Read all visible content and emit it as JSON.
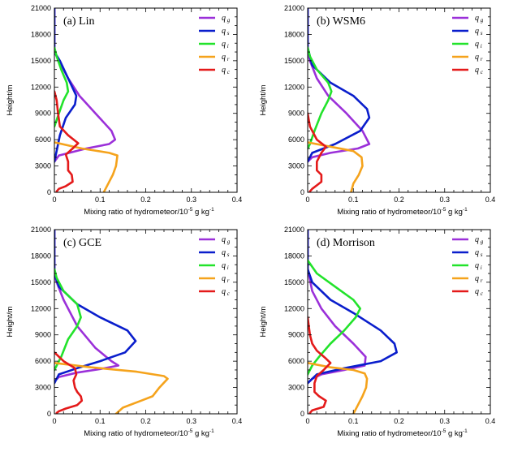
{
  "figure": {
    "xlabel": "Mixing ratio of hydrometeor/10",
    "xlabel_exp": "-5",
    "xlabel_unit": "g kg",
    "xlabel_unit_exp": "-1",
    "ylabel": "Height/m"
  },
  "legend": [
    {
      "sym": "q",
      "sub": "g",
      "color": "#9b30d9"
    },
    {
      "sym": "q",
      "sub": "s",
      "color": "#0a1ecc"
    },
    {
      "sym": "q",
      "sub": "i",
      "color": "#22e32b"
    },
    {
      "sym": "q",
      "sub": "r",
      "color": "#f5a31c"
    },
    {
      "sym": "q",
      "sub": "c",
      "color": "#e41a1a"
    }
  ],
  "colors": {
    "qg": "#9b30d9",
    "qs": "#0a1ecc",
    "qi": "#22e32b",
    "qr": "#f5a31c",
    "qc": "#e41a1a"
  },
  "chart_data": [
    {
      "type": "line",
      "title": "(a) Lin",
      "xlabel": "Mixing ratio of hydrometeor/10-5 g kg-1",
      "ylabel": "Height/m",
      "xlim": [
        0,
        0.4
      ],
      "ylim": [
        0,
        21000
      ],
      "xticks": [
        "0",
        "0.1",
        "0.2",
        "0.3",
        "0.4"
      ],
      "yticks": [
        "0",
        "3000",
        "6000",
        "9000",
        "12000",
        "15000",
        "18000",
        "21000"
      ],
      "series": [
        {
          "name": "qg",
          "points": [
            [
              0.0,
              21000
            ],
            [
              0.0,
              16000
            ],
            [
              0.01,
              15000
            ],
            [
              0.03,
              13000
            ],
            [
              0.055,
              11000
            ],
            [
              0.09,
              9000
            ],
            [
              0.125,
              7000
            ],
            [
              0.133,
              6000
            ],
            [
              0.12,
              5500
            ],
            [
              0.07,
              5000
            ],
            [
              0.01,
              4200
            ],
            [
              0.0,
              3500
            ]
          ]
        },
        {
          "name": "qs",
          "points": [
            [
              0.0,
              21000
            ],
            [
              0.0,
              16000
            ],
            [
              0.012,
              15000
            ],
            [
              0.03,
              13000
            ],
            [
              0.048,
              11000
            ],
            [
              0.045,
              10000
            ],
            [
              0.025,
              8500
            ],
            [
              0.012,
              6500
            ],
            [
              0.006,
              5000
            ],
            [
              0.0,
              3500
            ]
          ]
        },
        {
          "name": "qi",
          "points": [
            [
              0.0,
              16500
            ],
            [
              0.005,
              15500
            ],
            [
              0.015,
              14000
            ],
            [
              0.027,
              12500
            ],
            [
              0.03,
              11500
            ],
            [
              0.02,
              10500
            ],
            [
              0.01,
              9000
            ],
            [
              0.0,
              7500
            ]
          ]
        },
        {
          "name": "qr",
          "points": [
            [
              0.0,
              5700
            ],
            [
              0.06,
              5000
            ],
            [
              0.12,
              4500
            ],
            [
              0.138,
              4200
            ],
            [
              0.135,
              3000
            ],
            [
              0.128,
              2000
            ],
            [
              0.118,
              1000
            ],
            [
              0.108,
              0
            ]
          ]
        },
        {
          "name": "qc",
          "points": [
            [
              0.0,
              11500
            ],
            [
              0.005,
              10500
            ],
            [
              0.008,
              9000
            ],
            [
              0.012,
              7500
            ],
            [
              0.03,
              6500
            ],
            [
              0.052,
              5600
            ],
            [
              0.04,
              5000
            ],
            [
              0.025,
              4300
            ],
            [
              0.03,
              3500
            ],
            [
              0.03,
              2500
            ],
            [
              0.038,
              2000
            ],
            [
              0.04,
              1200
            ],
            [
              0.025,
              700
            ],
            [
              0.01,
              400
            ],
            [
              0.005,
              100
            ]
          ]
        }
      ]
    },
    {
      "type": "line",
      "title": "(b) WSM6",
      "xlabel": "Mixing ratio of hydrometeor/10-5 g kg-1",
      "ylabel": "Height/m",
      "xlim": [
        0,
        0.4
      ],
      "ylim": [
        0,
        21000
      ],
      "xticks": [
        "0",
        "0.1",
        "0.2",
        "0.3",
        "0.4"
      ],
      "yticks": [
        "0",
        "3000",
        "6000",
        "9000",
        "12000",
        "15000",
        "18000",
        "21000"
      ],
      "series": [
        {
          "name": "qg",
          "points": [
            [
              0.0,
              21000
            ],
            [
              0.0,
              16000
            ],
            [
              0.005,
              15000
            ],
            [
              0.02,
              13000
            ],
            [
              0.045,
              11000
            ],
            [
              0.085,
              9000
            ],
            [
              0.12,
              7000
            ],
            [
              0.135,
              5500
            ],
            [
              0.11,
              5000
            ],
            [
              0.05,
              4500
            ],
            [
              0.01,
              4000
            ],
            [
              0.0,
              3500
            ]
          ]
        },
        {
          "name": "qs",
          "points": [
            [
              0.0,
              21000
            ],
            [
              0.0,
              16500
            ],
            [
              0.01,
              14500
            ],
            [
              0.05,
              12500
            ],
            [
              0.1,
              11000
            ],
            [
              0.13,
              9500
            ],
            [
              0.135,
              8500
            ],
            [
              0.115,
              7000
            ],
            [
              0.06,
              5500
            ],
            [
              0.01,
              4500
            ],
            [
              0.0,
              3500
            ]
          ]
        },
        {
          "name": "qi",
          "points": [
            [
              0.0,
              16500
            ],
            [
              0.005,
              15500
            ],
            [
              0.02,
              14000
            ],
            [
              0.045,
              12500
            ],
            [
              0.052,
              11500
            ],
            [
              0.045,
              10500
            ],
            [
              0.03,
              9000
            ],
            [
              0.015,
              7000
            ],
            [
              0.005,
              5500
            ],
            [
              0.0,
              5000
            ]
          ]
        },
        {
          "name": "qr",
          "points": [
            [
              0.0,
              5700
            ],
            [
              0.05,
              5200
            ],
            [
              0.1,
              4700
            ],
            [
              0.118,
              4000
            ],
            [
              0.12,
              3000
            ],
            [
              0.112,
              2000
            ],
            [
              0.1,
              1000
            ],
            [
              0.095,
              0
            ]
          ]
        },
        {
          "name": "qc",
          "points": [
            [
              0.0,
              9000
            ],
            [
              0.005,
              7500
            ],
            [
              0.02,
              6000
            ],
            [
              0.04,
              5200
            ],
            [
              0.03,
              4500
            ],
            [
              0.02,
              3500
            ],
            [
              0.02,
              2500
            ],
            [
              0.03,
              2000
            ],
            [
              0.03,
              1200
            ],
            [
              0.02,
              800
            ],
            [
              0.01,
              400
            ],
            [
              0.005,
              100
            ]
          ]
        }
      ]
    },
    {
      "type": "line",
      "title": "(c) GCE",
      "xlabel": "Mixing ratio of hydrometeor/10-5 g kg-1",
      "ylabel": "Height/m",
      "xlim": [
        0,
        0.4
      ],
      "ylim": [
        0,
        21000
      ],
      "xticks": [
        "0",
        "0.1",
        "0.2",
        "0.3",
        "0.4"
      ],
      "yticks": [
        "0",
        "3000",
        "6000",
        "9000",
        "12000",
        "15000",
        "18000",
        "21000"
      ],
      "series": [
        {
          "name": "qg",
          "points": [
            [
              0.0,
              21000
            ],
            [
              0.0,
              16000
            ],
            [
              0.005,
              15000
            ],
            [
              0.02,
              13000
            ],
            [
              0.05,
              10000
            ],
            [
              0.09,
              7500
            ],
            [
              0.125,
              6000
            ],
            [
              0.14,
              5500
            ],
            [
              0.1,
              5100
            ],
            [
              0.05,
              4700
            ],
            [
              0.01,
              4200
            ],
            [
              0.0,
              3700
            ]
          ]
        },
        {
          "name": "qs",
          "points": [
            [
              0.0,
              21000
            ],
            [
              0.0,
              16000
            ],
            [
              0.01,
              14500
            ],
            [
              0.05,
              12500
            ],
            [
              0.1,
              11000
            ],
            [
              0.16,
              9500
            ],
            [
              0.178,
              8300
            ],
            [
              0.155,
              7000
            ],
            [
              0.1,
              6000
            ],
            [
              0.05,
              5200
            ],
            [
              0.01,
              4500
            ],
            [
              0.0,
              3500
            ]
          ]
        },
        {
          "name": "qi",
          "points": [
            [
              0.0,
              16500
            ],
            [
              0.005,
              15500
            ],
            [
              0.02,
              14000
            ],
            [
              0.05,
              12500
            ],
            [
              0.058,
              11000
            ],
            [
              0.05,
              10000
            ],
            [
              0.03,
              8500
            ],
            [
              0.015,
              6500
            ],
            [
              0.005,
              5500
            ],
            [
              0.0,
              5000
            ]
          ]
        },
        {
          "name": "qr",
          "points": [
            [
              0.0,
              5800
            ],
            [
              0.08,
              5300
            ],
            [
              0.18,
              4800
            ],
            [
              0.24,
              4300
            ],
            [
              0.248,
              4000
            ],
            [
              0.23,
              3000
            ],
            [
              0.215,
              2000
            ],
            [
              0.19,
              1500
            ],
            [
              0.15,
              700
            ],
            [
              0.135,
              0
            ]
          ]
        },
        {
          "name": "qc",
          "points": [
            [
              0.0,
              7000
            ],
            [
              0.02,
              6000
            ],
            [
              0.045,
              5200
            ],
            [
              0.048,
              4500
            ],
            [
              0.042,
              3800
            ],
            [
              0.045,
              3000
            ],
            [
              0.05,
              2500
            ],
            [
              0.058,
              2000
            ],
            [
              0.06,
              1500
            ],
            [
              0.05,
              1000
            ],
            [
              0.025,
              600
            ],
            [
              0.01,
              300
            ],
            [
              0.005,
              100
            ]
          ]
        }
      ]
    },
    {
      "type": "line",
      "title": "(d) Morrison",
      "xlabel": "Mixing ratio of hydrometeor/10-5 g kg-1",
      "ylabel": "Height/m",
      "xlim": [
        0,
        0.4
      ],
      "ylim": [
        0,
        21000
      ],
      "xticks": [
        "0",
        "0.1",
        "0.2",
        "0.3",
        "0.4"
      ],
      "yticks": [
        "0",
        "3000",
        "6000",
        "9000",
        "12000",
        "15000",
        "18000",
        "21000"
      ],
      "series": [
        {
          "name": "qg",
          "points": [
            [
              0.0,
              21000
            ],
            [
              0.0,
              16500
            ],
            [
              0.01,
              14000
            ],
            [
              0.03,
              12000
            ],
            [
              0.06,
              10000
            ],
            [
              0.1,
              8000
            ],
            [
              0.127,
              6500
            ],
            [
              0.125,
              5500
            ],
            [
              0.08,
              5000
            ],
            [
              0.03,
              4500
            ],
            [
              0.01,
              4000
            ],
            [
              0.0,
              3500
            ]
          ]
        },
        {
          "name": "qs",
          "points": [
            [
              0.0,
              21000
            ],
            [
              0.0,
              16500
            ],
            [
              0.01,
              15000
            ],
            [
              0.05,
              13000
            ],
            [
              0.1,
              11500
            ],
            [
              0.16,
              9500
            ],
            [
              0.19,
              8000
            ],
            [
              0.195,
              7000
            ],
            [
              0.16,
              6000
            ],
            [
              0.08,
              5200
            ],
            [
              0.02,
              4500
            ],
            [
              0.0,
              3500
            ]
          ]
        },
        {
          "name": "qi",
          "points": [
            [
              0.0,
              17500
            ],
            [
              0.02,
              16000
            ],
            [
              0.06,
              14500
            ],
            [
              0.1,
              13000
            ],
            [
              0.115,
              12000
            ],
            [
              0.105,
              11000
            ],
            [
              0.08,
              9500
            ],
            [
              0.05,
              8000
            ],
            [
              0.025,
              6500
            ],
            [
              0.01,
              5500
            ],
            [
              0.0,
              4500
            ]
          ]
        },
        {
          "name": "qr",
          "points": [
            [
              0.0,
              5800
            ],
            [
              0.05,
              5300
            ],
            [
              0.1,
              5000
            ],
            [
              0.125,
              4600
            ],
            [
              0.13,
              4000
            ],
            [
              0.128,
              3000
            ],
            [
              0.12,
              2000
            ],
            [
              0.11,
              1000
            ],
            [
              0.1,
              0
            ]
          ]
        },
        {
          "name": "qc",
          "points": [
            [
              0.0,
              11000
            ],
            [
              0.005,
              9000
            ],
            [
              0.01,
              8000
            ],
            [
              0.02,
              7200
            ],
            [
              0.04,
              6300
            ],
            [
              0.05,
              5800
            ],
            [
              0.035,
              5000
            ],
            [
              0.02,
              4300
            ],
            [
              0.015,
              3500
            ],
            [
              0.015,
              2500
            ],
            [
              0.025,
              2000
            ],
            [
              0.04,
              1500
            ],
            [
              0.035,
              800
            ],
            [
              0.01,
              400
            ],
            [
              0.005,
              100
            ]
          ]
        }
      ]
    }
  ]
}
